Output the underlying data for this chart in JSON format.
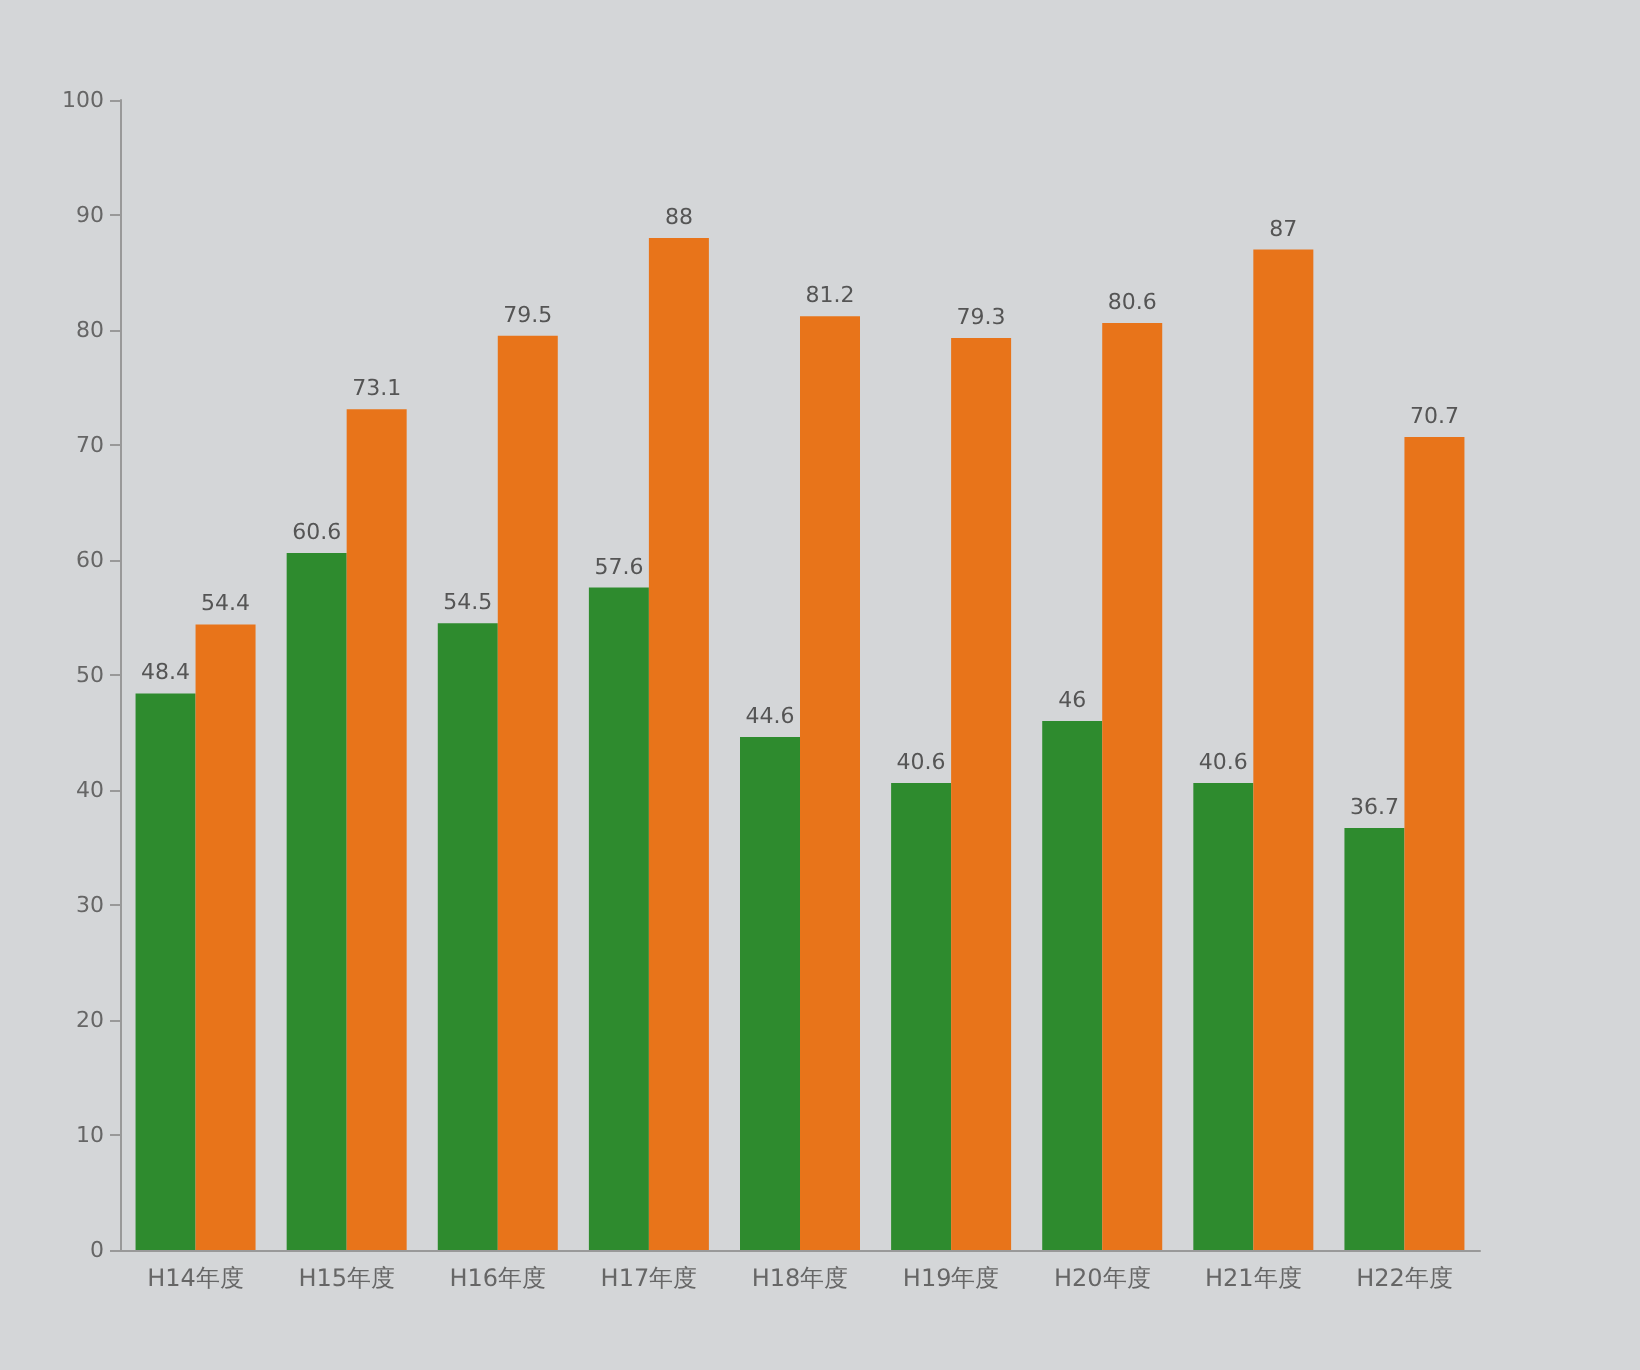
{
  "chart_data": {
    "type": "bar",
    "categories": [
      "H14年度",
      "H15年度",
      "H16年度",
      "H17年度",
      "H18年度",
      "H19年度",
      "H20年度",
      "H21年度",
      "H22年度"
    ],
    "series": [
      {
        "color": "#2e8b2e",
        "values": [
          48.4,
          60.6,
          54.5,
          57.6,
          44.6,
          40.6,
          46,
          40.6,
          36.7
        ]
      },
      {
        "color": "#e8741a",
        "values": [
          54.4,
          73.1,
          79.5,
          88,
          81.2,
          79.3,
          80.6,
          87,
          70.7
        ]
      }
    ],
    "ylim": [
      0,
      100
    ],
    "yticks": [
      0,
      10,
      20,
      30,
      40,
      50,
      60,
      70,
      80,
      90,
      100
    ],
    "grid": false,
    "data_labels": true
  }
}
